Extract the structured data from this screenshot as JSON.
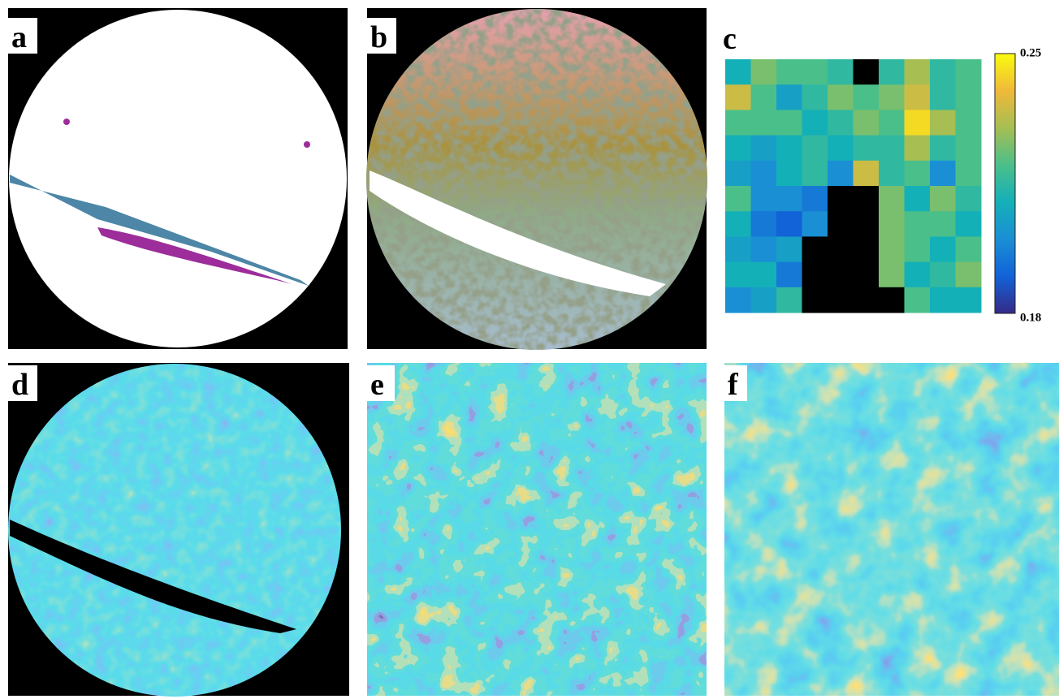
{
  "panels": [
    {
      "label": "a"
    },
    {
      "label": "b"
    },
    {
      "label": "c"
    },
    {
      "label": "d"
    },
    {
      "label": "e"
    },
    {
      "label": "f"
    }
  ],
  "chart_data": {
    "type": "heatmap",
    "values": [
      [
        0.21,
        0.225,
        0.22,
        0.22,
        0.215,
        null,
        0.215,
        0.23,
        0.215,
        0.22
      ],
      [
        0.235,
        0.22,
        0.205,
        0.215,
        0.225,
        0.22,
        0.225,
        0.235,
        0.215,
        0.22
      ],
      [
        0.22,
        0.22,
        0.22,
        0.21,
        0.215,
        0.225,
        0.22,
        0.245,
        0.23,
        0.22
      ],
      [
        0.21,
        0.205,
        0.21,
        0.215,
        0.21,
        0.215,
        0.215,
        0.23,
        0.215,
        0.22
      ],
      [
        0.205,
        0.2,
        0.21,
        0.215,
        0.2,
        0.235,
        0.215,
        0.22,
        0.2,
        0.22
      ],
      [
        0.22,
        0.2,
        0.2,
        0.195,
        null,
        null,
        0.225,
        0.21,
        0.225,
        0.215
      ],
      [
        0.21,
        0.195,
        0.19,
        0.2,
        null,
        null,
        0.225,
        0.22,
        0.22,
        0.21
      ],
      [
        0.205,
        0.2,
        0.205,
        null,
        null,
        null,
        0.225,
        0.22,
        0.21,
        0.22
      ],
      [
        0.21,
        0.21,
        0.195,
        null,
        null,
        null,
        0.225,
        0.21,
        0.215,
        0.225
      ],
      [
        0.2,
        0.205,
        0.215,
        null,
        null,
        null,
        null,
        0.22,
        0.21,
        0.21
      ]
    ],
    "clim": [
      0.18,
      0.25
    ],
    "cticks": [
      0.25,
      0.18
    ],
    "colormap": [
      "#352a87",
      "#1262d8",
      "#1a8fd4",
      "#14b0b8",
      "#4bbf8a",
      "#a6be52",
      "#f0b93a",
      "#f9fb0e"
    ],
    "null_color": "#000000"
  }
}
